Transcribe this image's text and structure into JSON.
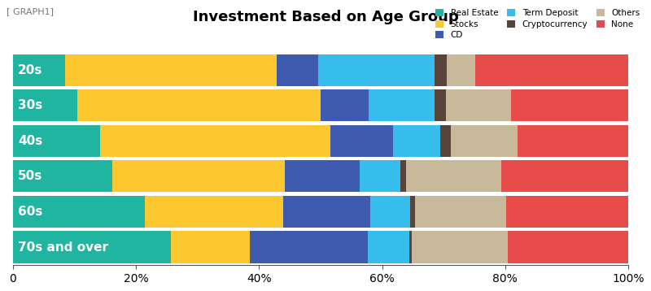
{
  "chart_data": {
    "type": "bar",
    "orientation": "horizontal",
    "stacked": true,
    "title": "Investment Based on Age Group",
    "annotations": [
      "[ GRAPH1]"
    ],
    "categories": [
      "20s",
      "30s",
      "40s",
      "50s",
      "60s",
      "70s and over"
    ],
    "series": [
      {
        "name": "Real Estate",
        "color": "#1fb5a0",
        "values": [
          8.5,
          10.5,
          14.1,
          16.2,
          21.4,
          25.7
        ]
      },
      {
        "name": "Stocks",
        "color": "#fdc82f",
        "values": [
          34.3,
          39.5,
          37.5,
          28.0,
          22.5,
          12.8
        ]
      },
      {
        "name": "CD",
        "color": "#3f5bb0",
        "values": [
          6.8,
          7.8,
          10.2,
          12.1,
          14.2,
          19.2
        ]
      },
      {
        "name": "Term Deposit",
        "color": "#36bdeb",
        "values": [
          18.9,
          10.7,
          7.6,
          6.6,
          6.5,
          6.7
        ]
      },
      {
        "name": "Cryptocurrency",
        "color": "#5a4338",
        "values": [
          2.0,
          1.9,
          1.7,
          1.0,
          0.7,
          0.4
        ]
      },
      {
        "name": "Others",
        "color": "#c9b99b",
        "values": [
          4.6,
          10.5,
          10.9,
          15.5,
          14.8,
          15.6
        ]
      },
      {
        "name": "None",
        "color": "#e84c4a",
        "values": [
          24.9,
          19.1,
          18.0,
          20.6,
          19.9,
          19.6
        ]
      }
    ],
    "xlim": [
      0,
      100
    ],
    "xticks": [
      0,
      {
        "value": 20,
        "label": "20%"
      },
      {
        "value": 40,
        "label": "40%"
      },
      {
        "value": 60,
        "label": "60%"
      },
      {
        "value": 80,
        "label": "80%"
      },
      {
        "value": 100,
        "label": "100%"
      }
    ],
    "legend": "upper right",
    "grid": false,
    "data_labels": false
  }
}
